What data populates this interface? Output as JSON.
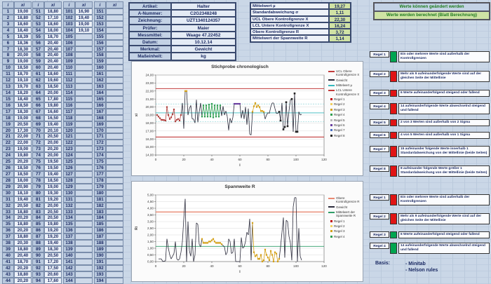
{
  "sheet": {
    "table": {
      "headers": [
        "i",
        "xi"
      ],
      "groups": [
        {
          "start": 1,
          "values": [
            "19,00",
            "18,80",
            "18,60",
            "18,40",
            "18,39",
            "18,36",
            "18,30",
            "20,00",
            "19,00",
            "18,50",
            "18,70",
            "19,10",
            "19,70",
            "18,20",
            "18,40",
            "18,50",
            "18,30",
            "19,00",
            "20,50",
            "17,30",
            "22,00",
            "22,00",
            "19,00",
            "19,80",
            "20,20",
            "18,50",
            "18,50",
            "18,00",
            "20,90",
            "18,10",
            "19,40",
            "20,50",
            "18,80",
            "20,20",
            "18,80",
            "20,20",
            "18,80",
            "20,30",
            "18,80",
            "20,40",
            "18,70",
            "20,20",
            "18,80",
            "20,20"
          ]
        },
        {
          "start": 51,
          "values": [
            "18,80",
            "17,10",
            "18,60",
            "18,00",
            "18,70",
            "20,40",
            "20,40",
            "20,40",
            "20,40",
            "20,40",
            "18,60",
            "19,60",
            "18,50",
            "20,00",
            "17,80",
            "19,80",
            "16,60",
            "16,50",
            "19,40",
            "20,10",
            "20,50",
            "20,00",
            "20,20",
            "20,00",
            "19,50",
            "19,50",
            "19,40",
            "18,50",
            "19,00",
            "19,30",
            "19,20",
            "20,00",
            "20,50",
            "20,50",
            "19,80",
            "19,20",
            "19,20",
            "19,40",
            "18,30",
            "20,50",
            "17,20",
            "17,50",
            "20,60",
            "17,60"
          ]
        },
        {
          "start": 101,
          "values": [
            "16,90",
            "19,40",
            "19,00",
            "19,10",
            "",
            "",
            "",
            "",
            "",
            "",
            "",
            "",
            "",
            "",
            "",
            "",
            "",
            "",
            "",
            "",
            "",
            "",
            "",
            "",
            "",
            "",
            "",
            "",
            "",
            "",
            "",
            "",
            "",
            "",
            "",
            "",
            "",
            "",
            "",
            "",
            "",
            "",
            "",
            ""
          ]
        },
        {
          "start": 151,
          "values": [
            "",
            "",
            "",
            "",
            "",
            "",
            "",
            "",
            "",
            "",
            "",
            "",
            "",
            "",
            "",
            "",
            "",
            "",
            "",
            "",
            "",
            "",
            "",
            "",
            "",
            "",
            "",
            "",
            "",
            "",
            "",
            "",
            "",
            "",
            "",
            "",
            "",
            "",
            "",
            "",
            "",
            "",
            "",
            ""
          ]
        }
      ]
    },
    "form": {
      "rows": [
        {
          "label": "Artikel:",
          "value": "Halter"
        },
        {
          "label": "A-Nummer:",
          "value": "C2G2348248"
        },
        {
          "label": "Zeichnung:",
          "value": "UZT1340124357"
        },
        {
          "label": "Prüfer:",
          "value": "Maier"
        },
        {
          "label": "Messmittel:",
          "value": "Waage 47.22452"
        },
        {
          "label": "Datum:",
          "value": "10.12.14"
        },
        {
          "label": "Merkmal:",
          "value": "Gewicht"
        },
        {
          "label": "Maßeinheit:",
          "value": "kg"
        }
      ]
    },
    "stats": {
      "rows": [
        {
          "label": "Mittelwert µ",
          "value": "19,27"
        },
        {
          "label": "Standardabweichung σ",
          "value": "1,11"
        },
        {
          "label": "UCL Obere Kontrollgrenze X",
          "value": "22,30"
        },
        {
          "label": "LCL Untere Kontrollgrenze X",
          "value": "16,24"
        },
        {
          "label": "Obere Kontrollgrenze R",
          "value": "3,72"
        },
        {
          "label": "Mittelwert der Spannweite R",
          "value": "1,14"
        }
      ]
    },
    "banner": {
      "line1": "Werte können geändert werden",
      "line2": "Werte werden berechnet (Blatt Berechnung)"
    },
    "rules_chart1": [
      {
        "label": "Regel 1",
        "status_color": "#00a550",
        "text": "Ein oder mehrere Werte sind außerhalb der Kontrollgrenzen"
      },
      {
        "label": "Regel 2",
        "status_color": "#e01414",
        "text": "Mehr als 9 aufeinanderfolgende Werte sind auf der gleichen Seite der Mittellinie"
      },
      {
        "label": "Regel 3",
        "status_color": "#e01414",
        "text": "6 Werte aufeinanderfolgend steigend oder fallend"
      },
      {
        "label": "Regel 4",
        "status_color": "#e01414",
        "text": "14 aufeinanderfolgende Werte abwechselnd steigend und fallend"
      },
      {
        "label": "Regel 5",
        "status_color": "#e01414",
        "text": "2 von 3 Werten sind außerhalb von 2 Sigma"
      },
      {
        "label": "Regel 6",
        "status_color": "#e01414",
        "text": "4 von 5 Werten sind außerhalb von 1 Sigma"
      },
      {
        "label": "Regel 7",
        "status_color": "#e01414",
        "text": "15 aufeinander folgende Werte innerhalb 1 Standardabweichung von der Mittellinie (beide Seiten)"
      },
      {
        "label": "Regel 8",
        "status_color": "#e01414",
        "text": "8 aufeinander folgende Werte größer 1 Standardabweichung von der Mittellinie (beide Seiten)"
      }
    ],
    "rules_chart2": [
      {
        "label": "Regel 1",
        "status_color": "#e01414",
        "text": "Ein oder mehrere Werte sind außerhalb der Kontrollgrenzen"
      },
      {
        "label": "Regel 2",
        "status_color": "#e01414",
        "text": "Mehr als 9 aufeinanderfolgende Werte sind auf der gleichen Seite der Mittellinie"
      },
      {
        "label": "Regel 3",
        "status_color": "#00a550",
        "text": "6 Werte aufeinanderfolgend steigend oder fallend"
      },
      {
        "label": "Regel 4",
        "status_color": "#00a550",
        "text": "14 aufeinanderfolgende Werte abwechselnd steigend und fallend"
      }
    ],
    "basis": {
      "label": "Basis:",
      "items": [
        "- Minitab",
        "- Nelson rules"
      ]
    }
  },
  "chart_data": [
    {
      "type": "line",
      "title": "Stichprobe chronologisch",
      "xlabel": "i",
      "ylabel": "xi",
      "xlim": [
        0,
        120
      ],
      "ylim": [
        14,
        24
      ],
      "xtick_step": 20,
      "ytick_step": 1,
      "grid": true,
      "legend_position": "right",
      "series_name": "Gewicht",
      "series_color": "#2b2b3b",
      "mean": 19.27,
      "ucl": 22.3,
      "lcl": 16.24,
      "sigma_lines": [
        20.38,
        18.16
      ],
      "ref_lines": [
        {
          "name": "UCL Obere Kontrollgrenze X",
          "value": 22.3,
          "color": "#c23b3b",
          "width": 1.1
        },
        {
          "name": "Mittelwert µ",
          "value": 19.27,
          "color": "#35b8bd",
          "width": 0.9
        },
        {
          "name": "LCL Untere Kontrollgrenze X",
          "value": 16.24,
          "color": "#c23b3b",
          "width": 1.1
        }
      ],
      "series": [
        19.0,
        18.8,
        18.6,
        18.4,
        18.39,
        18.36,
        18.3,
        20.0,
        19.0,
        18.5,
        18.7,
        19.1,
        19.7,
        18.2,
        18.4,
        18.5,
        18.3,
        19.0,
        20.5,
        17.3,
        22.0,
        22.0,
        19.0,
        19.8,
        20.2,
        18.5,
        18.5,
        18.0,
        20.9,
        18.1,
        19.4,
        20.5,
        18.8,
        20.2,
        18.8,
        20.2,
        18.8,
        20.3,
        18.8,
        20.4,
        18.7,
        20.2,
        18.8,
        20.2,
        18.8,
        20.2,
        18.9,
        20.1,
        19.0,
        19.5,
        18.8,
        17.1,
        18.6,
        18.0,
        18.7,
        20.4,
        20.4,
        20.4,
        20.4,
        20.4,
        18.6,
        19.6,
        18.5,
        20.0,
        17.8,
        19.8,
        16.6,
        16.5,
        19.4,
        20.1,
        20.5,
        20.0,
        20.2,
        20.0,
        19.5,
        19.5,
        19.4,
        18.5,
        19.0,
        19.3,
        19.2,
        20.0,
        20.5,
        20.5,
        19.8,
        19.2,
        19.2,
        19.4,
        18.3,
        20.5,
        17.2,
        17.5,
        20.6,
        17.6,
        19.5,
        20.9,
        21.0,
        16.9,
        21.7,
        16.9,
        16.9,
        19.4,
        19.0,
        19.1
      ],
      "highlight_segments": [
        {
          "from": 1,
          "to": 18,
          "color": "#b0413e"
        },
        {
          "from": 21,
          "to": 22,
          "color": "#d4a017"
        },
        {
          "from": 33,
          "to": 46,
          "color": "#2e9e4f"
        },
        {
          "from": 56,
          "to": 60,
          "color": "#6a3fa0"
        },
        {
          "from": 69,
          "to": 77,
          "color": "#d4a017"
        }
      ],
      "marker_points": [
        88,
        89,
        91,
        92,
        93,
        94,
        97,
        99,
        100,
        101
      ],
      "legend": [
        {
          "type": "line",
          "color": "#c23b3b",
          "label": "UCL Obere Kontrollgrenze X"
        },
        {
          "type": "line",
          "color": "#2b2b3b",
          "label": "Gewicht"
        },
        {
          "type": "line",
          "color": "#35b8bd",
          "label": "Mittelwert µ"
        },
        {
          "type": "line",
          "color": "#c23b3b",
          "label": "LCL Untere Kontrollgrenze X"
        },
        {
          "type": "marker",
          "color": "#c00000",
          "label": "Regel 1"
        },
        {
          "type": "marker",
          "color": "#f0d060",
          "label": "Regel 2"
        },
        {
          "type": "marker",
          "color": "#d4a017",
          "label": "Regel 3"
        },
        {
          "type": "marker",
          "color": "#2e9e4f",
          "label": "Regel 4"
        },
        {
          "type": "marker",
          "color": "#b8b8b8",
          "label": "Regel 5"
        },
        {
          "type": "marker",
          "color": "#6a3fa0",
          "label": "Regel 6"
        },
        {
          "type": "marker",
          "color": "#4a6fc0",
          "label": "Regel 7"
        },
        {
          "type": "marker",
          "color": "#222222",
          "label": "Regel 8"
        }
      ]
    },
    {
      "type": "line",
      "title": "Spannweite R",
      "xlabel": "i",
      "ylabel": "Ri",
      "xlim": [
        0,
        120
      ],
      "ylim": [
        0,
        5
      ],
      "xtick_step": 20,
      "ytick_step": 0.5,
      "grid": true,
      "legend_position": "right",
      "series_name": "Gewicht",
      "series_color": "#2b2b3b",
      "derived": "moving_range_abs_diff_of_chart1_series",
      "ucl": 3.72,
      "mean": 1.14,
      "ref_lines": [
        {
          "name": "Obere Kontrollgrenze R",
          "value": 3.72,
          "color": "#e98973",
          "width": 1.3
        },
        {
          "name": "Mittelwert der Spannweite R",
          "value": 1.14,
          "color": "#2f9e68",
          "width": 0.9
        }
      ],
      "highlight_segments": [
        {
          "from": 33,
          "to": 47,
          "color": "#d4a017"
        },
        {
          "from": 69,
          "to": 88,
          "color": "#d4a017"
        }
      ],
      "legend": [
        {
          "type": "line",
          "color": "#e98973",
          "label": "Obere Kontrollgrenze R"
        },
        {
          "type": "line",
          "color": "#2b2b3b",
          "label": "Gewicht"
        },
        {
          "type": "line",
          "color": "#2f9e68",
          "label": "Mittelwert der Spannweite R"
        },
        {
          "type": "marker",
          "color": "#c00000",
          "label": "Regel 1"
        },
        {
          "type": "marker",
          "color": "#f0d060",
          "label": "Regel 2"
        },
        {
          "type": "marker",
          "color": "#d4a017",
          "label": "Regel 3"
        },
        {
          "type": "marker",
          "color": "#2e9e4f",
          "label": "Regel 4"
        }
      ]
    }
  ]
}
